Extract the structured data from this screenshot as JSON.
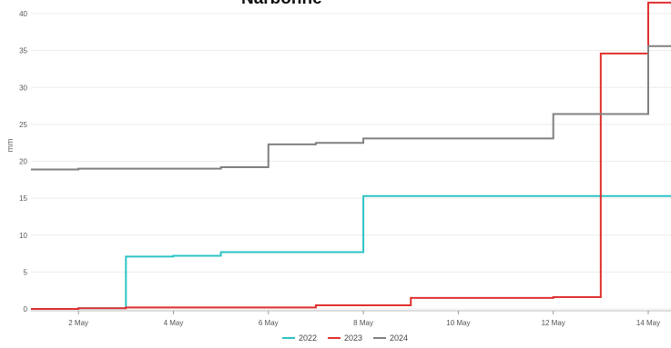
{
  "chart_data": {
    "type": "line",
    "step": true,
    "title": "Narbonne",
    "xlabel": "",
    "ylabel": "mm",
    "ylim": [
      0,
      42
    ],
    "xlim": [
      "2024-05-01",
      "2024-05-14"
    ],
    "y_ticks": [
      0,
      5,
      10,
      15,
      20,
      25,
      30,
      35,
      40
    ],
    "x_ticks": [
      {
        "date": "2024-05-02",
        "label": "2 May"
      },
      {
        "date": "2024-05-04",
        "label": "4 May"
      },
      {
        "date": "2024-05-06",
        "label": "6 May"
      },
      {
        "date": "2024-05-08",
        "label": "8 May"
      },
      {
        "date": "2024-05-10",
        "label": "10 May"
      },
      {
        "date": "2024-05-12",
        "label": "12 May"
      },
      {
        "date": "2024-05-14",
        "label": "14 May"
      }
    ],
    "grid": true,
    "legend": "bottom",
    "series": [
      {
        "name": "2022",
        "color": "#2ec4c4",
        "x": [
          "2024-05-01",
          "2024-05-02",
          "2024-05-03",
          "2024-05-04",
          "2024-05-05",
          "2024-05-06",
          "2024-05-07",
          "2024-05-08",
          "2024-05-09",
          "2024-05-10",
          "2024-05-11",
          "2024-05-12",
          "2024-05-13",
          "2024-05-14"
        ],
        "y": [
          0.0,
          0.1,
          7.1,
          7.2,
          7.7,
          7.7,
          7.7,
          15.3,
          15.3,
          15.3,
          15.3,
          15.3,
          15.3,
          15.3
        ]
      },
      {
        "name": "2023",
        "color": "#e03030",
        "x": [
          "2024-05-01",
          "2024-05-02",
          "2024-05-03",
          "2024-05-04",
          "2024-05-05",
          "2024-05-06",
          "2024-05-07",
          "2024-05-08",
          "2024-05-09",
          "2024-05-10",
          "2024-05-11",
          "2024-05-12",
          "2024-05-13",
          "2024-05-14"
        ],
        "y": [
          0.0,
          0.1,
          0.2,
          0.2,
          0.2,
          0.2,
          0.5,
          0.5,
          1.5,
          1.5,
          1.5,
          1.6,
          34.6,
          41.5
        ]
      },
      {
        "name": "2024",
        "color": "#808080",
        "x": [
          "2024-05-01",
          "2024-05-02",
          "2024-05-03",
          "2024-05-04",
          "2024-05-05",
          "2024-05-06",
          "2024-05-07",
          "2024-05-08",
          "2024-05-09",
          "2024-05-10",
          "2024-05-11",
          "2024-05-12",
          "2024-05-13",
          "2024-05-14"
        ],
        "y": [
          18.9,
          19.0,
          19.0,
          19.0,
          19.2,
          22.3,
          22.5,
          23.1,
          23.1,
          23.1,
          23.1,
          26.4,
          26.4,
          35.6
        ]
      }
    ]
  }
}
